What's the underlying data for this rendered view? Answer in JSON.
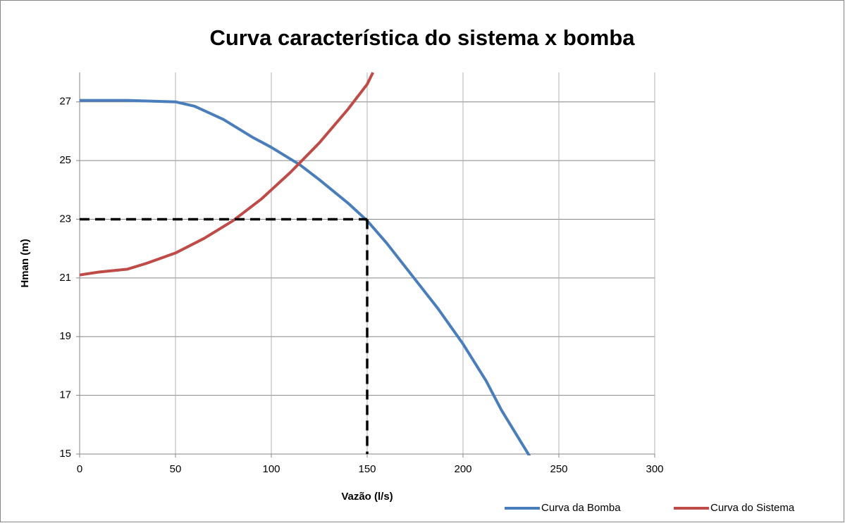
{
  "chart_data": {
    "type": "line",
    "title": "Curva característica do sistema x bomba",
    "x_label": "Vazão (l/s)",
    "y_label": "Hman (m)",
    "xlim": [
      0,
      300
    ],
    "xticks": [
      0,
      50,
      100,
      150,
      200,
      250,
      300
    ],
    "ylim": [
      15,
      28
    ],
    "yticks": [
      15,
      17,
      19,
      21,
      23,
      25,
      27
    ],
    "grid": true,
    "legend": "bottom-right",
    "series": [
      {
        "name": "Curva da Bomba",
        "color": "#4a7ebb",
        "x": [
          0,
          25,
          50,
          60,
          75,
          90,
          100,
          115,
          125,
          140,
          150,
          160,
          175,
          187,
          200,
          212,
          220,
          235
        ],
        "values": [
          27.05,
          27.05,
          27.0,
          26.85,
          26.4,
          25.8,
          25.45,
          24.85,
          24.35,
          23.55,
          22.95,
          22.2,
          20.95,
          19.95,
          18.75,
          17.5,
          16.5,
          14.9
        ]
      },
      {
        "name": "Curva do Sistema",
        "color": "#be4b48",
        "x": [
          0,
          10,
          25,
          35,
          50,
          65,
          80,
          95,
          110,
          125,
          140,
          150,
          153
        ],
        "values": [
          21.1,
          21.2,
          21.3,
          21.5,
          21.85,
          22.35,
          22.95,
          23.7,
          24.6,
          25.6,
          26.75,
          27.6,
          28.0
        ]
      }
    ],
    "reference": {
      "x": 150,
      "y": 23
    }
  }
}
